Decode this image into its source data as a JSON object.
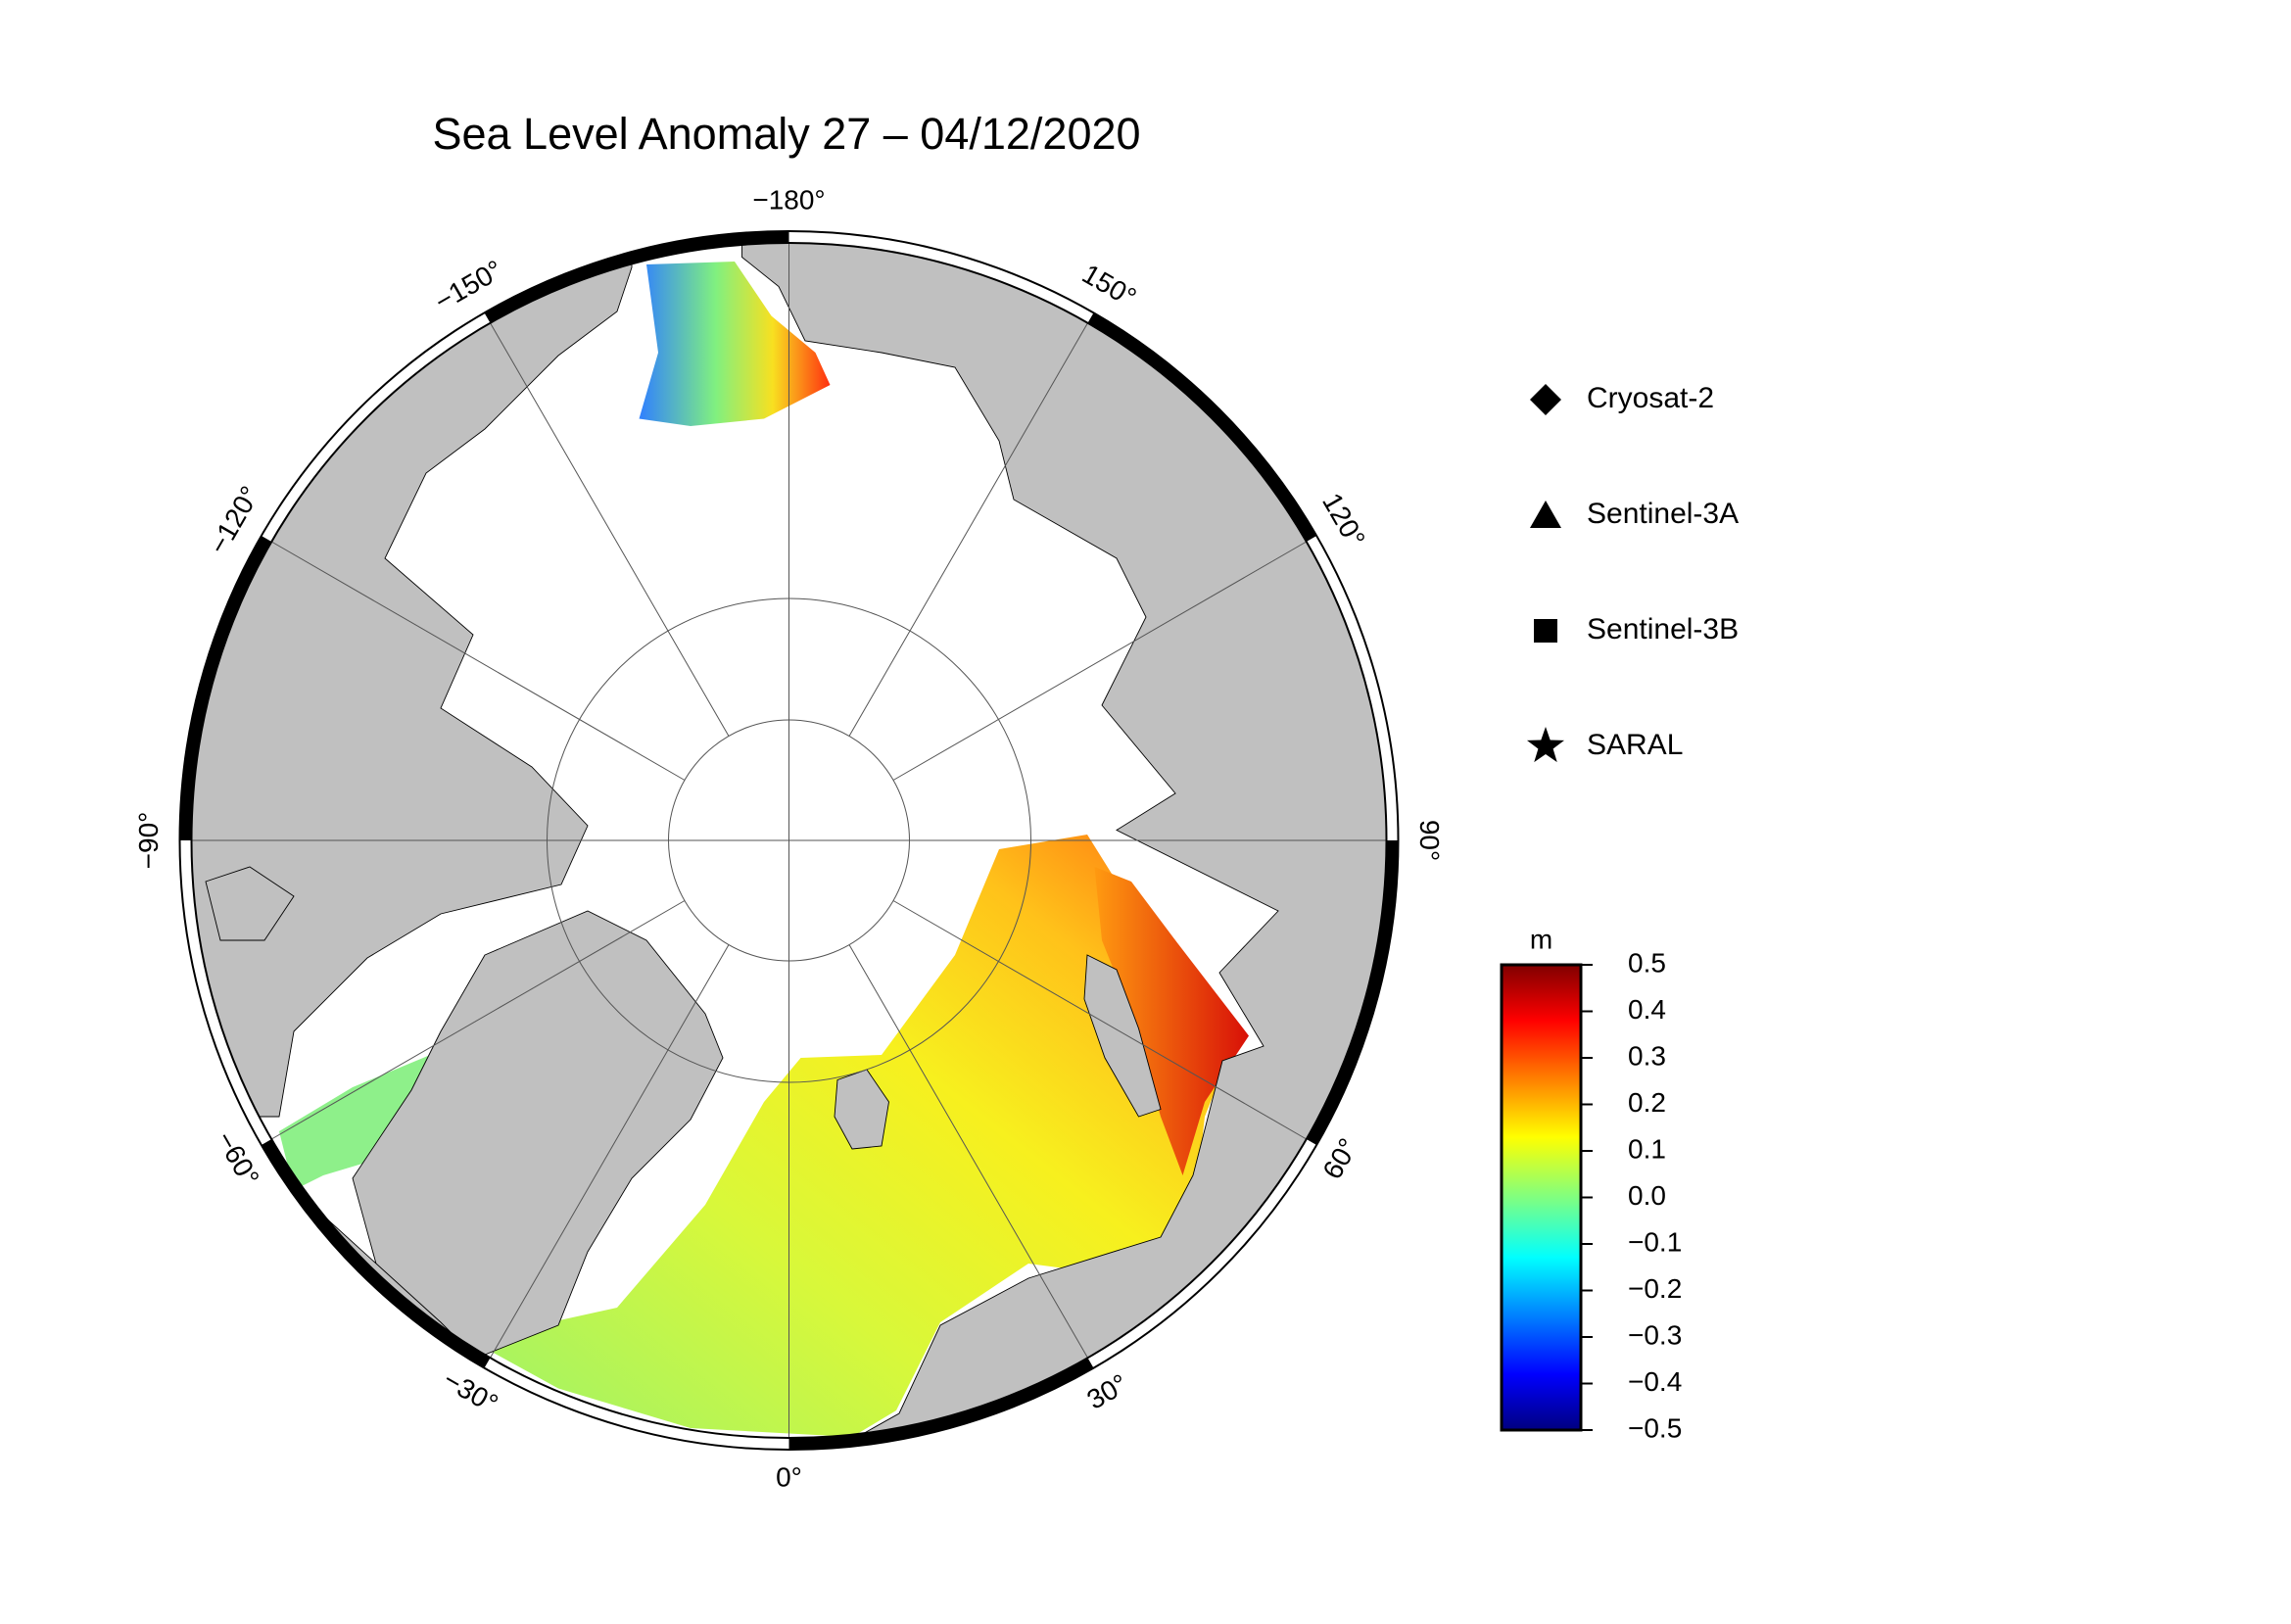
{
  "title": "Sea Level Anomaly 27 – 04/12/2020",
  "map": {
    "longitude_labels": [
      {
        "value": -180,
        "label": "−180°"
      },
      {
        "value": 150,
        "label": "150°"
      },
      {
        "value": 120,
        "label": "120°"
      },
      {
        "value": 90,
        "label": "90°"
      },
      {
        "value": 60,
        "label": "60°"
      },
      {
        "value": 30,
        "label": "30°"
      },
      {
        "value": 0,
        "label": "0°"
      },
      {
        "value": -30,
        "label": "−30°"
      },
      {
        "value": -60,
        "label": "−60°"
      },
      {
        "value": -90,
        "label": "−90°"
      },
      {
        "value": -120,
        "label": "−120°"
      },
      {
        "value": -150,
        "label": "−150°"
      }
    ]
  },
  "legend": {
    "entries": [
      {
        "label": "Cryosat-2",
        "marker": "diamond"
      },
      {
        "label": "Sentinel-3A",
        "marker": "triangle"
      },
      {
        "label": "Sentinel-3B",
        "marker": "square"
      },
      {
        "label": "SARAL",
        "marker": "star"
      }
    ]
  },
  "colorbar": {
    "unit": "m",
    "range": [
      -0.5,
      0.5
    ],
    "ticks": [
      0.5,
      0.4,
      0.3,
      0.2,
      0.1,
      {
        "value": 0,
        "label": "0.0"
      },
      {
        "value": -0.1,
        "label": "−0.1"
      },
      {
        "value": -0.2,
        "label": "−0.2"
      },
      {
        "value": -0.3,
        "label": "−0.3"
      },
      {
        "value": -0.4,
        "label": "−0.4"
      },
      {
        "value": -0.5,
        "label": "−0.5"
      }
    ]
  }
}
